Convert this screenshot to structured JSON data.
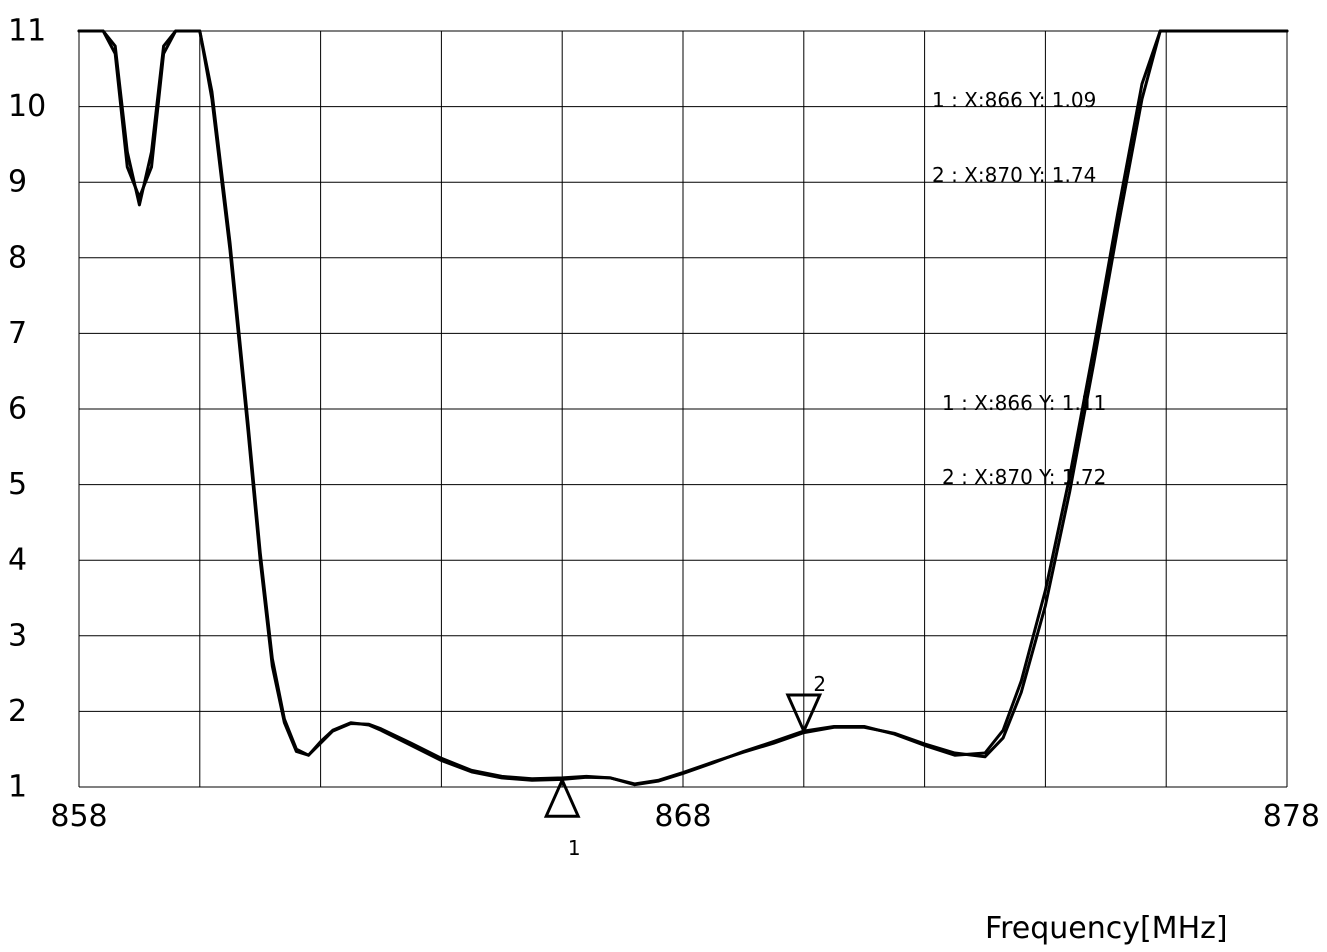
{
  "chart_data": {
    "type": "line",
    "title": "",
    "xlabel": "Frequency[MHz]",
    "ylabel": "",
    "xlim": [
      858,
      878
    ],
    "ylim": [
      1,
      11
    ],
    "grid": true,
    "x_ticks": [
      "858",
      "868",
      "878"
    ],
    "y_ticks": [
      "1",
      "2",
      "3",
      "4",
      "5",
      "6",
      "7",
      "8",
      "9",
      "10",
      "11"
    ],
    "series": [
      {
        "x": [
          858,
          858.2,
          858.4,
          858.6,
          858.8,
          859.0,
          859.2,
          859.4,
          859.6,
          859.8,
          860.0,
          860.2,
          860.5,
          860.8,
          861.0,
          861.2,
          861.4,
          861.6,
          861.8,
          862.0,
          862.2,
          862.5,
          862.8,
          863.0,
          863.5,
          864.0,
          864.5,
          865.0,
          865.5,
          866.0,
          866.4,
          866.8,
          867.2,
          867.6,
          868.0,
          868.5,
          869.0,
          869.5,
          870.0,
          870.5,
          871.0,
          871.5,
          872.0,
          872.5,
          873.0,
          873.3,
          873.6,
          874.0,
          874.4,
          874.8,
          875.2,
          875.6,
          875.9,
          876.2,
          876.6,
          877.0,
          877.5,
          878.0
        ],
        "y": [
          11,
          11,
          11,
          10.7,
          9.2,
          8.8,
          9.2,
          10.7,
          11,
          11,
          11,
          10.2,
          8.2,
          5.8,
          4.1,
          2.7,
          1.9,
          1.5,
          1.42,
          1.6,
          1.75,
          1.85,
          1.82,
          1.75,
          1.55,
          1.35,
          1.2,
          1.12,
          1.09,
          1.1,
          1.13,
          1.12,
          1.03,
          1.08,
          1.18,
          1.32,
          1.47,
          1.6,
          1.74,
          1.8,
          1.8,
          1.7,
          1.55,
          1.42,
          1.45,
          1.75,
          2.4,
          3.6,
          5.1,
          6.8,
          8.6,
          10.3,
          11,
          11,
          11,
          11,
          11,
          11
        ]
      },
      {
        "x": [
          858,
          858.2,
          858.4,
          858.6,
          858.8,
          859.0,
          859.2,
          859.4,
          859.6,
          859.8,
          860.0,
          860.2,
          860.5,
          860.8,
          861.0,
          861.2,
          861.4,
          861.6,
          861.8,
          862.0,
          862.2,
          862.5,
          862.8,
          863.0,
          863.5,
          864.0,
          864.5,
          865.0,
          865.5,
          866.0,
          866.4,
          866.8,
          867.2,
          867.6,
          868.0,
          868.5,
          869.0,
          869.5,
          870.0,
          870.5,
          871.0,
          871.5,
          872.0,
          872.5,
          873.0,
          873.3,
          873.6,
          874.0,
          874.4,
          874.8,
          875.2,
          875.6,
          875.9,
          876.2,
          876.6,
          877.0,
          877.5,
          878.0
        ],
        "y": [
          11,
          11,
          11,
          10.8,
          9.4,
          8.7,
          9.4,
          10.8,
          11,
          11,
          11,
          10.1,
          8.1,
          5.7,
          4.0,
          2.6,
          1.85,
          1.47,
          1.42,
          1.58,
          1.74,
          1.84,
          1.83,
          1.77,
          1.58,
          1.38,
          1.22,
          1.14,
          1.11,
          1.12,
          1.14,
          1.12,
          1.04,
          1.09,
          1.19,
          1.33,
          1.46,
          1.58,
          1.72,
          1.79,
          1.79,
          1.71,
          1.57,
          1.45,
          1.4,
          1.65,
          2.25,
          3.4,
          4.9,
          6.6,
          8.4,
          10.1,
          11,
          11,
          11,
          11,
          11,
          11
        ]
      }
    ],
    "markers": [
      {
        "id": "1",
        "x": 866,
        "y": 1.09,
        "direction": "up"
      },
      {
        "id": "2",
        "x": 870,
        "y": 1.74,
        "direction": "down"
      }
    ],
    "annotations": [
      {
        "text": "1  : X:866 Y: 1.09"
      },
      {
        "text": "2  : X:870 Y: 1.74"
      },
      {
        "text": "1   : X:866 Y: 1.11"
      },
      {
        "text": "2   : X:870 Y: 1.72"
      }
    ]
  }
}
